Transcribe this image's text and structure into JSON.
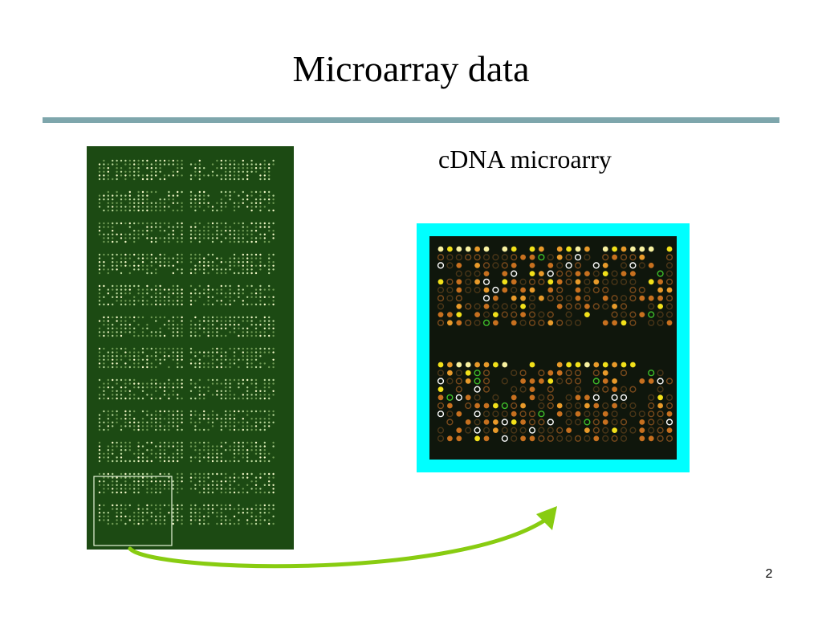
{
  "slide": {
    "title": "Microarray data",
    "subtitle": "cDNA microarry",
    "page_number": "2"
  },
  "colors": {
    "rule": "#7ea6ac",
    "full_array_bg": "#1c4a13",
    "zoom_frame": "#00ffff",
    "zoom_array_bg": "#0f160c",
    "arrow": "#88cc11",
    "selection_box": "#e6f5d8"
  }
}
